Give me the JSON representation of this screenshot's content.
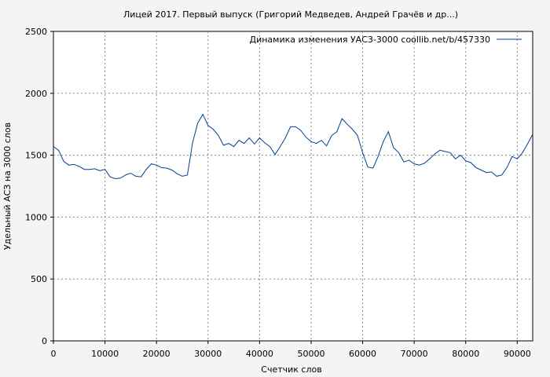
{
  "chart_data": {
    "type": "line",
    "title": "Лицей 2017. Первый выпуск (Григорий Медведев, Андрей Грачёв и др...)",
    "xlabel": "Счетчик слов",
    "ylabel": "Удельный АСЗ на 3000 слов",
    "xlim": [
      0,
      93000
    ],
    "ylim": [
      0,
      2500
    ],
    "xticks": [
      0,
      10000,
      20000,
      30000,
      40000,
      50000,
      60000,
      70000,
      80000,
      90000
    ],
    "yticks": [
      0,
      500,
      1000,
      1500,
      2000,
      2500
    ],
    "grid": true,
    "legend_position": "top-right",
    "series": [
      {
        "name": "Динамика изменения УАСЗ-3000  coollib.net/b/457330",
        "color": "#003f8f",
        "x": [
          0,
          1000,
          2000,
          3000,
          4000,
          5000,
          6000,
          7000,
          8000,
          9000,
          10000,
          11000,
          12000,
          13000,
          14000,
          15000,
          16000,
          17000,
          18000,
          19000,
          20000,
          21000,
          22000,
          23000,
          24000,
          25000,
          26000,
          27000,
          28000,
          29000,
          30000,
          31000,
          32000,
          33000,
          34000,
          35000,
          36000,
          37000,
          38000,
          39000,
          40000,
          41000,
          42000,
          43000,
          44000,
          45000,
          46000,
          47000,
          48000,
          49000,
          50000,
          51000,
          52000,
          53000,
          54000,
          55000,
          56000,
          57000,
          58000,
          59000,
          60000,
          61000,
          62000,
          63000,
          64000,
          65000,
          66000,
          67000,
          68000,
          69000,
          70000,
          71000,
          72000,
          73000,
          74000,
          75000,
          76000,
          77000,
          78000,
          79000,
          80000,
          81000,
          82000,
          83000,
          84000,
          85000,
          86000,
          87000,
          88000,
          89000,
          90000,
          91000,
          92000,
          93000
        ],
        "y": [
          1570,
          1540,
          1450,
          1420,
          1425,
          1410,
          1385,
          1385,
          1390,
          1375,
          1385,
          1325,
          1310,
          1315,
          1340,
          1355,
          1330,
          1325,
          1385,
          1430,
          1420,
          1400,
          1395,
          1380,
          1350,
          1330,
          1340,
          1600,
          1760,
          1830,
          1740,
          1710,
          1660,
          1580,
          1595,
          1570,
          1620,
          1595,
          1640,
          1590,
          1640,
          1600,
          1570,
          1505,
          1570,
          1640,
          1730,
          1730,
          1700,
          1645,
          1610,
          1595,
          1620,
          1575,
          1660,
          1690,
          1795,
          1750,
          1710,
          1660,
          1520,
          1405,
          1395,
          1490,
          1610,
          1690,
          1560,
          1520,
          1445,
          1460,
          1430,
          1420,
          1435,
          1470,
          1510,
          1540,
          1530,
          1520,
          1470,
          1500,
          1455,
          1440,
          1400,
          1380,
          1360,
          1365,
          1330,
          1340,
          1400,
          1490,
          1470,
          1520,
          1590,
          1670
        ]
      }
    ]
  }
}
